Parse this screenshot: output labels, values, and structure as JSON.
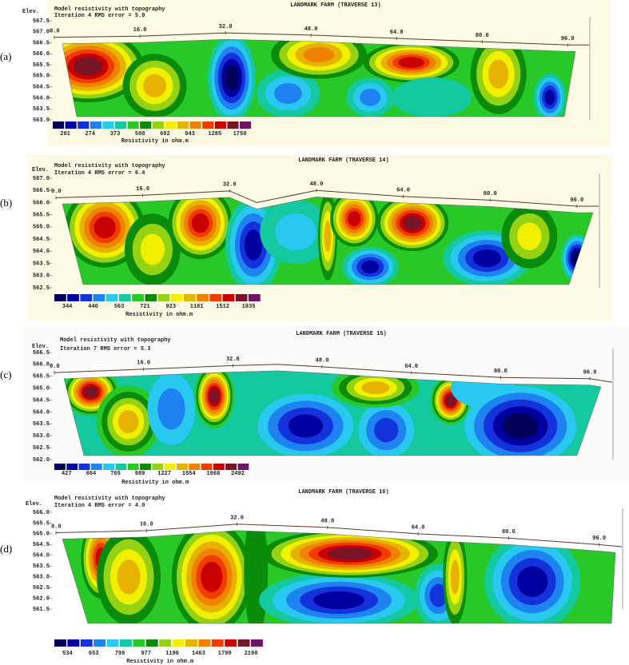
{
  "chart_data": [
    {
      "type": "contour",
      "panel_label": "(a)",
      "title": "LANDMARK FARM (TRAVERSE 13)",
      "subtitle": "Model resistivity with topography",
      "annotation": "Iteration 4 RMS error = 5.9",
      "y_label": "Elev.",
      "legend_title": "Resistivity in ohm.m",
      "xlim": [
        0,
        100
      ],
      "ylim": [
        563.0,
        567.5
      ],
      "xticks": [
        {
          "value": 0,
          "label": "0.0"
        },
        {
          "value": 16,
          "label": "16.0"
        },
        {
          "value": 32,
          "label": "32.0"
        },
        {
          "value": 48,
          "label": "48.0"
        },
        {
          "value": 64,
          "label": "64.0"
        },
        {
          "value": 80,
          "label": "80.0"
        },
        {
          "value": 96,
          "label": "96.0"
        }
      ],
      "yticks": [
        {
          "value": 567.5,
          "label": "567.5"
        },
        {
          "value": 567.0,
          "label": "567.0"
        },
        {
          "value": 566.5,
          "label": "566.5"
        },
        {
          "value": 566.0,
          "label": "566.0"
        },
        {
          "value": 565.5,
          "label": "565.5"
        },
        {
          "value": 565.0,
          "label": "565.0"
        },
        {
          "value": 564.5,
          "label": "564.5"
        },
        {
          "value": 564.0,
          "label": "564.0"
        },
        {
          "value": 563.5,
          "label": "563.5"
        },
        {
          "value": 563.0,
          "label": "563.0"
        }
      ],
      "topography": {
        "distance": [
          0,
          16,
          32,
          48,
          64,
          80,
          96,
          100
        ],
        "elevation": [
          566.75,
          566.8,
          566.95,
          566.85,
          566.7,
          566.55,
          566.4,
          566.4
        ]
      },
      "legend_levels": [
        201,
        274,
        373,
        508,
        692,
        943,
        1285,
        1750
      ],
      "colors": [
        "#00005a",
        "#0000a0",
        "#1432dc",
        "#1e82f0",
        "#28c8f0",
        "#14c8a0",
        "#28c828",
        "#0a8c0a",
        "#96d214",
        "#f0f000",
        "#e6b400",
        "#f08200",
        "#f03c00",
        "#c80000",
        "#781428",
        "#6e1464"
      ]
    },
    {
      "type": "contour",
      "panel_label": "(b)",
      "title": "LANDMARK FARM (TRAVERSE 14)",
      "subtitle": "Model resistivity with topography",
      "annotation": "Iteration 4 RMS error = 6.4",
      "y_label": "Elev.",
      "legend_title": "Resistivity in ohm.m",
      "xlim": [
        0,
        100
      ],
      "ylim": [
        562.5,
        567.0
      ],
      "xticks": [
        {
          "value": 0,
          "label": "0.0"
        },
        {
          "value": 16,
          "label": "16.0"
        },
        {
          "value": 32,
          "label": "32.0"
        },
        {
          "value": 48,
          "label": "48.0"
        },
        {
          "value": 64,
          "label": "64.0"
        },
        {
          "value": 80,
          "label": "80.0"
        },
        {
          "value": 96,
          "label": "96.0"
        }
      ],
      "yticks": [
        {
          "value": 567.0,
          "label": "567.0"
        },
        {
          "value": 566.5,
          "label": "566.5"
        },
        {
          "value": 566.0,
          "label": "566.0"
        },
        {
          "value": 565.5,
          "label": "565.5"
        },
        {
          "value": 565.0,
          "label": "565.0"
        },
        {
          "value": 564.5,
          "label": "564.5"
        },
        {
          "value": 564.0,
          "label": "564.0"
        },
        {
          "value": 563.5,
          "label": "563.5"
        },
        {
          "value": 563.0,
          "label": "563.0"
        },
        {
          "value": 562.5,
          "label": "562.5"
        }
      ],
      "topography": {
        "distance": [
          0,
          16,
          32,
          37,
          48,
          64,
          80,
          96,
          100
        ],
        "elevation": [
          566.2,
          566.3,
          566.48,
          566.0,
          566.5,
          566.25,
          566.1,
          565.85,
          565.85
        ]
      },
      "legend_levels": [
        344,
        440,
        563,
        721,
        923,
        1181,
        1512,
        1935
      ],
      "colors": [
        "#00005a",
        "#0000a0",
        "#1432dc",
        "#1e82f0",
        "#28c8f0",
        "#14c8a0",
        "#28c828",
        "#0a8c0a",
        "#96d214",
        "#f0f000",
        "#e6b400",
        "#f08200",
        "#f03c00",
        "#c80000",
        "#781428",
        "#6e1464"
      ]
    },
    {
      "type": "contour",
      "panel_label": "(c)",
      "title": "LANDMARK FARM (TRAVERSE 15)",
      "subtitle": "Model resistivity with topography",
      "annotation": "Iteration 7 RMS error = 5.3",
      "y_label": "Elev.",
      "legend_title": "Resistivity in ohm.m",
      "xlim": [
        0,
        100
      ],
      "ylim": [
        562.0,
        566.5
      ],
      "xticks": [
        {
          "value": 0,
          "label": "0.0"
        },
        {
          "value": 16,
          "label": "16.0"
        },
        {
          "value": 32,
          "label": "32.0"
        },
        {
          "value": 48,
          "label": "48.0"
        },
        {
          "value": 64,
          "label": "64.0"
        },
        {
          "value": 80,
          "label": "80.0"
        },
        {
          "value": 96,
          "label": "96.0"
        }
      ],
      "yticks": [
        {
          "value": 566.5,
          "label": "566.5"
        },
        {
          "value": 566.0,
          "label": "566.0"
        },
        {
          "value": 565.5,
          "label": "565.5"
        },
        {
          "value": 565.0,
          "label": "565.0"
        },
        {
          "value": 564.5,
          "label": "564.5"
        },
        {
          "value": 564.0,
          "label": "564.0"
        },
        {
          "value": 563.5,
          "label": "563.5"
        },
        {
          "value": 563.0,
          "label": "563.0"
        },
        {
          "value": 562.5,
          "label": "562.5"
        },
        {
          "value": 562.0,
          "label": "562.0"
        }
      ],
      "topography": {
        "distance": [
          0,
          16,
          32,
          40,
          48,
          64,
          80,
          96,
          100
        ],
        "elevation": [
          565.65,
          565.8,
          565.95,
          566.0,
          565.9,
          565.65,
          565.45,
          565.4,
          565.25
        ]
      },
      "legend_levels": [
        427,
        604,
        765,
        989,
        1227,
        1554,
        1968,
        2492
      ],
      "colors": [
        "#00005a",
        "#0000a0",
        "#1432dc",
        "#1e82f0",
        "#28c8f0",
        "#14c8a0",
        "#28c828",
        "#0a8c0a",
        "#96d214",
        "#f0f000",
        "#e6b400",
        "#f08200",
        "#f03c00",
        "#c80000",
        "#781428",
        "#6e1464"
      ]
    },
    {
      "type": "contour",
      "panel_label": "(d)",
      "title": "LANDMARK FARM (TRAVERSE 16)",
      "subtitle": "Model resistivity with topography",
      "annotation": "Iteration 4 RMS error = 4.0",
      "y_label": "Elev.",
      "legend_title": "Resistivity in ohm.m",
      "xlim": [
        0,
        100
      ],
      "ylim": [
        561.5,
        566.0
      ],
      "xticks": [
        {
          "value": 0,
          "label": "0.0"
        },
        {
          "value": 16,
          "label": "16.0"
        },
        {
          "value": 32,
          "label": "32.0"
        },
        {
          "value": 48,
          "label": "48.0"
        },
        {
          "value": 64,
          "label": "64.0"
        },
        {
          "value": 80,
          "label": "80.0"
        },
        {
          "value": 96,
          "label": "96.0"
        }
      ],
      "yticks": [
        {
          "value": 566.0,
          "label": "566.0"
        },
        {
          "value": 565.5,
          "label": "565.5"
        },
        {
          "value": 565.0,
          "label": "565.0"
        },
        {
          "value": 564.5,
          "label": "564.5"
        },
        {
          "value": 564.0,
          "label": "564.0"
        },
        {
          "value": 563.5,
          "label": "563.5"
        },
        {
          "value": 563.0,
          "label": "563.0"
        },
        {
          "value": 562.5,
          "label": "562.5"
        },
        {
          "value": 562.0,
          "label": "562.0"
        },
        {
          "value": 561.5,
          "label": "561.5"
        }
      ],
      "topography": {
        "distance": [
          0,
          16,
          32,
          48,
          64,
          80,
          96,
          100
        ],
        "elevation": [
          565.05,
          565.15,
          565.45,
          565.3,
          565.0,
          564.8,
          564.5,
          564.4
        ]
      },
      "legend_levels": [
        534,
        653,
        799,
        977,
        1196,
        1463,
        1790,
        2190
      ],
      "colors": [
        "#00005a",
        "#0000a0",
        "#1432dc",
        "#1e82f0",
        "#28c8f0",
        "#14c8a0",
        "#28c828",
        "#0a8c0a",
        "#96d214",
        "#f0f000",
        "#e6b400",
        "#f08200",
        "#f03c00",
        "#c80000",
        "#781428",
        "#6e1464"
      ]
    }
  ]
}
